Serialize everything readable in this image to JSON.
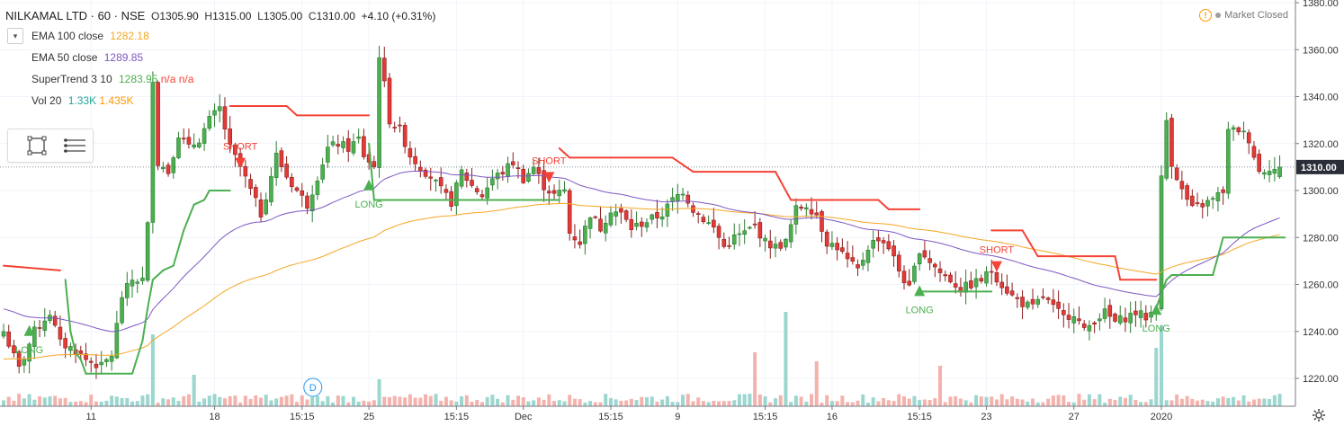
{
  "header": {
    "symbol": "NILKAMAL LTD · 60 · NSE",
    "open_label": "O",
    "open": "1305.90",
    "high_label": "H",
    "high": "1315.00",
    "low_label": "L",
    "low": "1305.00",
    "close_label": "C",
    "close": "1310.00",
    "change": "+4.10 (+0.31%)"
  },
  "indicators": [
    {
      "label": "EMA 100 close",
      "values": [
        "1282.18"
      ],
      "colors": [
        "#f5a623"
      ]
    },
    {
      "label": "EMA 50 close",
      "values": [
        "1289.85"
      ],
      "colors": [
        "#7e57c2"
      ]
    },
    {
      "label": "SuperTrend 3 10",
      "values": [
        "1283.95",
        "n/a",
        "n/a"
      ],
      "colors": [
        "#4caf50",
        "#f44336",
        "#f44336"
      ]
    },
    {
      "label": "Vol 20",
      "values": [
        "1.33K",
        "1.435K"
      ],
      "colors": [
        "#26a69a",
        "#ff9800"
      ]
    }
  ],
  "status": {
    "market": "Market Closed"
  },
  "icons": {
    "collapse": "chevron-down-icon",
    "rect_tool": "rectangle-tool-icon",
    "menu": "menu-lines-icon",
    "settings": "gear-icon",
    "warning": "warning-icon"
  },
  "colors": {
    "up": "#26a69a",
    "down": "#ef5350",
    "upBody": "#4caf50",
    "ema100": "#f5a623",
    "ema50": "#7e57c2",
    "stUp": "#4caf50",
    "stDown": "#f44336",
    "price_badge": "#2a2e39"
  },
  "chart_data": {
    "type": "candlestick",
    "symbol": "NILKAMAL LTD",
    "interval": "60",
    "exchange": "NSE",
    "ylim": [
      1210,
      1380
    ],
    "y_ticks": [
      1220,
      1240,
      1260,
      1280,
      1300,
      1320,
      1340,
      1360,
      1380
    ],
    "last_price": "1310.00",
    "x_ticks": [
      {
        "label": "11",
        "bar": 17
      },
      {
        "label": "18",
        "bar": 41
      },
      {
        "label": "15:15",
        "bar": 58
      },
      {
        "label": "25",
        "bar": 71
      },
      {
        "label": "15:15",
        "bar": 88
      },
      {
        "label": "Dec",
        "bar": 101
      },
      {
        "label": "15:15",
        "bar": 118
      },
      {
        "label": "9",
        "bar": 131
      },
      {
        "label": "15:15",
        "bar": 148
      },
      {
        "label": "16",
        "bar": 161
      },
      {
        "label": "15:15",
        "bar": 178
      },
      {
        "label": "23",
        "bar": 191
      },
      {
        "label": "27",
        "bar": 208
      },
      {
        "label": "2020",
        "bar": 225
      }
    ],
    "anchors": [
      [
        0,
        1240
      ],
      [
        3,
        1224
      ],
      [
        6,
        1240
      ],
      [
        9,
        1248
      ],
      [
        11,
        1235
      ],
      [
        14,
        1232
      ],
      [
        16,
        1228
      ],
      [
        19,
        1225
      ],
      [
        21,
        1230
      ],
      [
        23,
        1255
      ],
      [
        25,
        1262
      ],
      [
        27,
        1262
      ],
      [
        28,
        1285
      ],
      [
        29,
        1348
      ],
      [
        30,
        1312
      ],
      [
        32,
        1308
      ],
      [
        34,
        1324
      ],
      [
        36,
        1318
      ],
      [
        38,
        1322
      ],
      [
        40,
        1330
      ],
      [
        42,
        1335
      ],
      [
        44,
        1318
      ],
      [
        46,
        1310
      ],
      [
        48,
        1300
      ],
      [
        50,
        1290
      ],
      [
        51,
        1298
      ],
      [
        53,
        1315
      ],
      [
        55,
        1306
      ],
      [
        57,
        1300
      ],
      [
        59,
        1294
      ],
      [
        61,
        1306
      ],
      [
        63,
        1318
      ],
      [
        65,
        1320
      ],
      [
        67,
        1318
      ],
      [
        69,
        1322
      ],
      [
        70,
        1315
      ],
      [
        72,
        1310
      ],
      [
        73,
        1358
      ],
      [
        74,
        1345
      ],
      [
        75,
        1330
      ],
      [
        77,
        1326
      ],
      [
        79,
        1315
      ],
      [
        81,
        1310
      ],
      [
        83,
        1306
      ],
      [
        85,
        1300
      ],
      [
        87,
        1295
      ],
      [
        89,
        1308
      ],
      [
        91,
        1302
      ],
      [
        93,
        1298
      ],
      [
        95,
        1305
      ],
      [
        97,
        1308
      ],
      [
        99,
        1312
      ],
      [
        101,
        1305
      ],
      [
        103,
        1310
      ],
      [
        105,
        1302
      ],
      [
        107,
        1298
      ],
      [
        109,
        1300
      ],
      [
        110,
        1282
      ],
      [
        112,
        1278
      ],
      [
        114,
        1290
      ],
      [
        116,
        1284
      ],
      [
        118,
        1292
      ],
      [
        120,
        1290
      ],
      [
        122,
        1284
      ],
      [
        124,
        1286
      ],
      [
        126,
        1288
      ],
      [
        128,
        1290
      ],
      [
        130,
        1296
      ],
      [
        132,
        1300
      ],
      [
        134,
        1292
      ],
      [
        136,
        1288
      ],
      [
        138,
        1284
      ],
      [
        140,
        1276
      ],
      [
        142,
        1280
      ],
      [
        144,
        1282
      ],
      [
        146,
        1285
      ],
      [
        148,
        1278
      ],
      [
        150,
        1276
      ],
      [
        152,
        1278
      ],
      [
        154,
        1292
      ],
      [
        156,
        1294
      ],
      [
        158,
        1290
      ],
      [
        160,
        1278
      ],
      [
        162,
        1276
      ],
      [
        164,
        1270
      ],
      [
        166,
        1266
      ],
      [
        168,
        1276
      ],
      [
        170,
        1280
      ],
      [
        172,
        1276
      ],
      [
        174,
        1266
      ],
      [
        176,
        1258
      ],
      [
        178,
        1275
      ],
      [
        180,
        1270
      ],
      [
        182,
        1265
      ],
      [
        184,
        1262
      ],
      [
        186,
        1258
      ],
      [
        188,
        1260
      ],
      [
        190,
        1262
      ],
      [
        192,
        1266
      ],
      [
        194,
        1260
      ],
      [
        196,
        1255
      ],
      [
        198,
        1252
      ],
      [
        200,
        1250
      ],
      [
        202,
        1255
      ],
      [
        204,
        1250
      ],
      [
        206,
        1246
      ],
      [
        208,
        1248
      ],
      [
        210,
        1240
      ],
      [
        212,
        1245
      ],
      [
        214,
        1248
      ],
      [
        216,
        1244
      ],
      [
        218,
        1246
      ],
      [
        220,
        1248
      ],
      [
        222,
        1246
      ],
      [
        224,
        1250
      ],
      [
        225,
        1305
      ],
      [
        226,
        1330
      ],
      [
        227,
        1312
      ],
      [
        229,
        1300
      ],
      [
        231,
        1292
      ],
      [
        233,
        1294
      ],
      [
        235,
        1296
      ],
      [
        237,
        1300
      ],
      [
        238,
        1325
      ],
      [
        240,
        1326
      ],
      [
        242,
        1322
      ],
      [
        244,
        1308
      ],
      [
        246,
        1310
      ],
      [
        248,
        1308
      ]
    ],
    "supertrend": [
      [
        0,
        1268,
        "down"
      ],
      [
        11,
        1266,
        "down"
      ],
      [
        12,
        1262,
        "up"
      ],
      [
        13,
        1240,
        "up"
      ],
      [
        14,
        1231,
        "up"
      ],
      [
        15,
        1228,
        "up"
      ],
      [
        16,
        1222,
        "up"
      ],
      [
        25,
        1222,
        "up"
      ],
      [
        27,
        1236,
        "up"
      ],
      [
        28,
        1250,
        "up"
      ],
      [
        29,
        1262,
        "up"
      ],
      [
        31,
        1266,
        "up"
      ],
      [
        33,
        1268,
        "up"
      ],
      [
        35,
        1283,
        "up"
      ],
      [
        37,
        1294,
        "up"
      ],
      [
        39,
        1296,
        "up"
      ],
      [
        40,
        1300,
        "up"
      ],
      [
        44,
        1300,
        "up"
      ],
      [
        44,
        1336,
        "down"
      ],
      [
        55,
        1336,
        "down"
      ],
      [
        57,
        1332,
        "down"
      ],
      [
        71,
        1332,
        "down"
      ],
      [
        71,
        1320,
        "up"
      ],
      [
        72,
        1296,
        "up"
      ],
      [
        108,
        1296,
        "up"
      ],
      [
        108,
        1318,
        "down"
      ],
      [
        109,
        1316,
        "down"
      ],
      [
        110,
        1314,
        "down"
      ],
      [
        130,
        1314,
        "down"
      ],
      [
        134,
        1308,
        "down"
      ],
      [
        150,
        1308,
        "down"
      ],
      [
        153,
        1296,
        "down"
      ],
      [
        170,
        1296,
        "down"
      ],
      [
        172,
        1292,
        "down"
      ],
      [
        178,
        1292,
        "down"
      ],
      [
        178,
        1257,
        "up"
      ],
      [
        192,
        1257,
        "up"
      ],
      [
        192,
        1283,
        "down"
      ],
      [
        198,
        1283,
        "down"
      ],
      [
        201,
        1272,
        "down"
      ],
      [
        216,
        1272,
        "down"
      ],
      [
        217,
        1262,
        "down"
      ],
      [
        224,
        1262,
        "down"
      ],
      [
        224,
        1250,
        "up"
      ],
      [
        226,
        1262,
        "up"
      ],
      [
        227,
        1264,
        "up"
      ],
      [
        235,
        1264,
        "up"
      ],
      [
        237,
        1280,
        "up"
      ],
      [
        249,
        1280,
        "up"
      ]
    ],
    "signals": [
      {
        "type": "LONG",
        "bar": 5,
        "price": 1240
      },
      {
        "type": "SHORT",
        "bar": 46,
        "price": 1312
      },
      {
        "type": "LONG",
        "bar": 71,
        "price": 1302
      },
      {
        "type": "SHORT",
        "bar": 106,
        "price": 1306
      },
      {
        "type": "LONG",
        "bar": 178,
        "price": 1257
      },
      {
        "type": "SHORT",
        "bar": 193,
        "price": 1268
      },
      {
        "type": "LONG",
        "bar": 224,
        "price": 1249
      }
    ],
    "dividend_marker": {
      "label": "D",
      "bar": 58
    }
  }
}
